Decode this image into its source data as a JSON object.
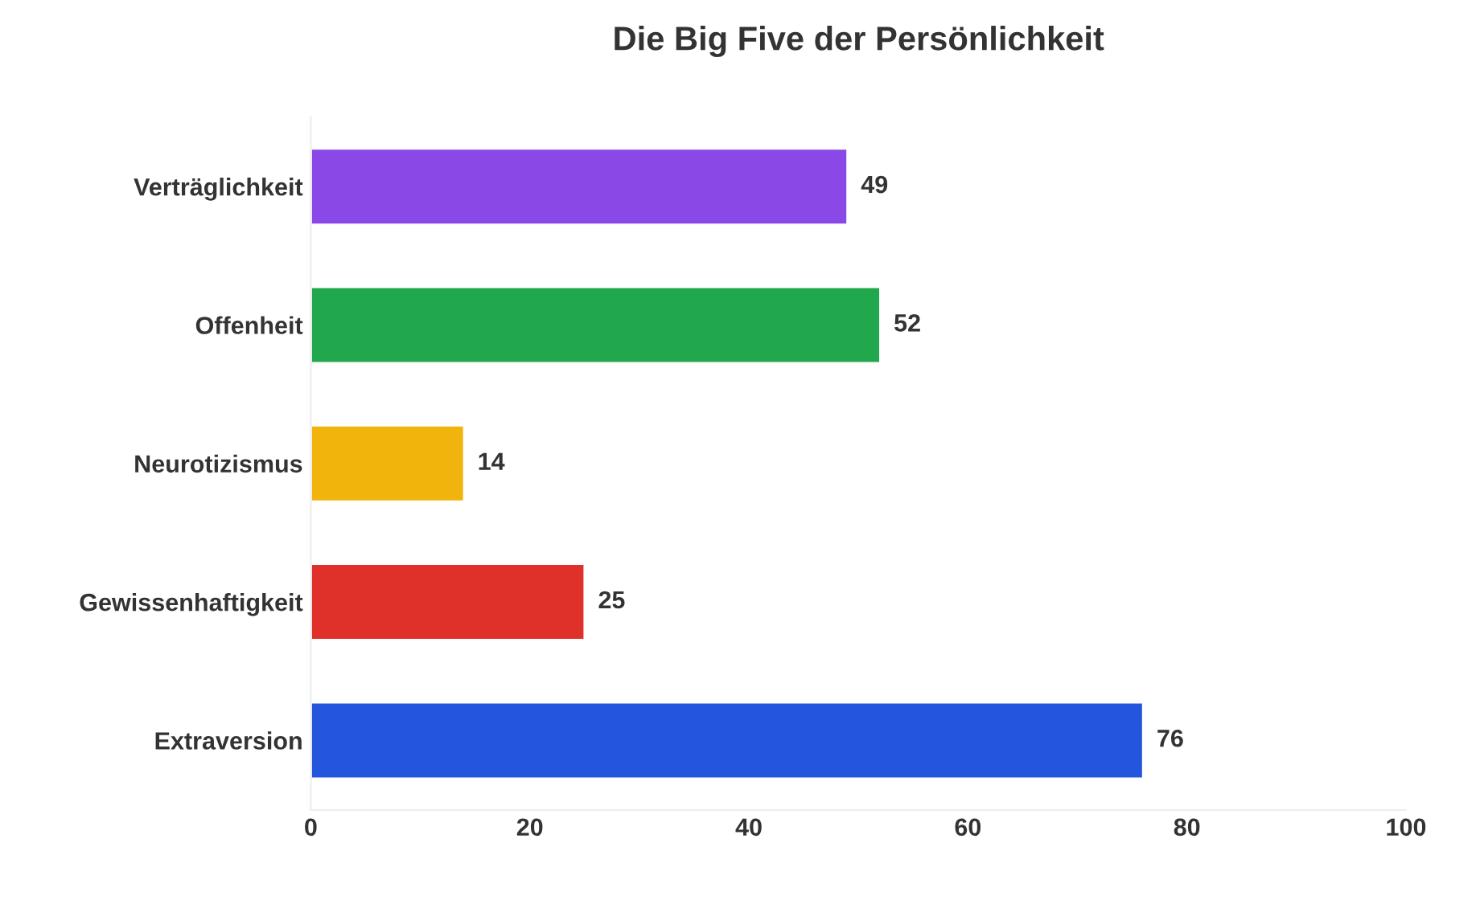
{
  "chart_data": {
    "type": "bar",
    "orientation": "horizontal",
    "title": "Die Big Five der Persönlichkeit",
    "categories": [
      "Verträglichkeit",
      "Offenheit",
      "Neurotizismus",
      "Gewissenhaftigkeit",
      "Extraversion"
    ],
    "values": [
      49,
      52,
      14,
      25,
      76
    ],
    "colors": [
      "#8a48e6",
      "#22a84c",
      "#f0b40c",
      "#e0302a",
      "#2356dc"
    ],
    "xlim": [
      0,
      100
    ],
    "xticks": [
      0,
      20,
      40,
      60,
      80,
      100
    ],
    "data_labels": true,
    "grid": false
  }
}
